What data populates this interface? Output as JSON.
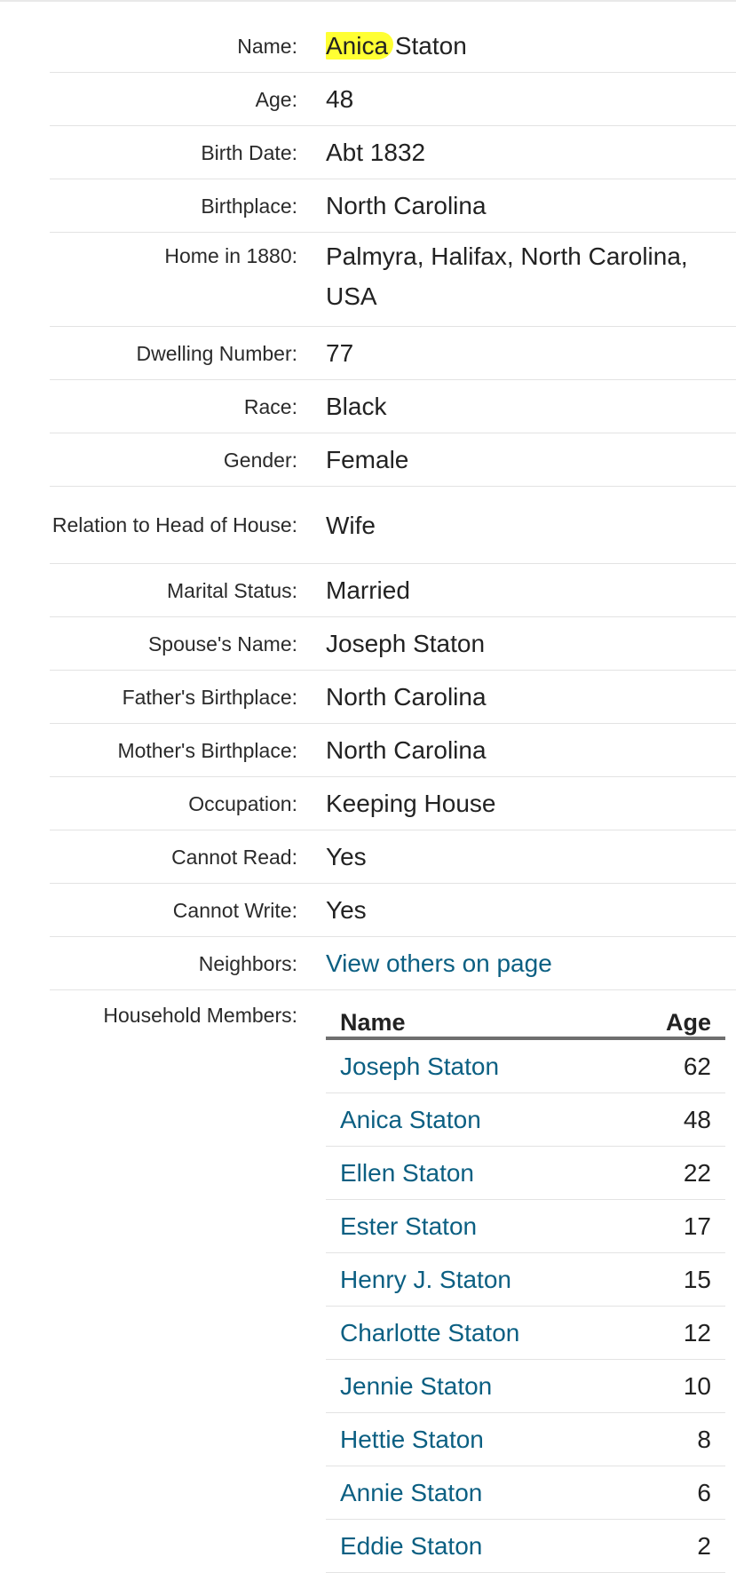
{
  "record": {
    "fields": [
      {
        "label": "Name:",
        "value_highlight": "Anica",
        "value_rest": " Staton"
      },
      {
        "label": "Age:",
        "value": "48"
      },
      {
        "label": "Birth Date:",
        "value": "Abt 1832"
      },
      {
        "label": "Birthplace:",
        "value": "North Carolina"
      },
      {
        "label": "Home in 1880:",
        "value": "Palmyra, Halifax, North Carolina, USA"
      },
      {
        "label": "Dwelling Number:",
        "value": "77"
      },
      {
        "label": "Race:",
        "value": "Black"
      },
      {
        "label": "Gender:",
        "value": "Female"
      },
      {
        "label": "Relation to Head of House:",
        "value": "Wife"
      },
      {
        "label": "Marital Status:",
        "value": "Married"
      },
      {
        "label": "Spouse's Name:",
        "value": "Joseph Staton"
      },
      {
        "label": "Father's Birthplace:",
        "value": "North Carolina"
      },
      {
        "label": "Mother's Birthplace:",
        "value": "North Carolina"
      },
      {
        "label": "Occupation:",
        "value": "Keeping House"
      },
      {
        "label": "Cannot Read:",
        "value": "Yes"
      },
      {
        "label": "Cannot Write:",
        "value": "Yes"
      },
      {
        "label": "Neighbors:",
        "value": "View others on page"
      }
    ],
    "household": {
      "label": "Household Members:",
      "headers": {
        "name": "Name",
        "age": "Age"
      },
      "members": [
        {
          "name": "Joseph Staton",
          "age": "62"
        },
        {
          "name": "Anica Staton",
          "age": "48"
        },
        {
          "name": "Ellen Staton",
          "age": "22"
        },
        {
          "name": "Ester Staton",
          "age": "17"
        },
        {
          "name": "Henry J. Staton",
          "age": "15"
        },
        {
          "name": "Charlotte Staton",
          "age": "12"
        },
        {
          "name": "Jennie Staton",
          "age": "10"
        },
        {
          "name": "Hettie Staton",
          "age": "8"
        },
        {
          "name": "Annie Staton",
          "age": "6"
        },
        {
          "name": "Eddie Staton",
          "age": "2"
        }
      ]
    }
  },
  "colors": {
    "link": "#0b5f82",
    "highlight": "#ffff33",
    "text": "#222222",
    "divider": "#e3e3e3"
  }
}
